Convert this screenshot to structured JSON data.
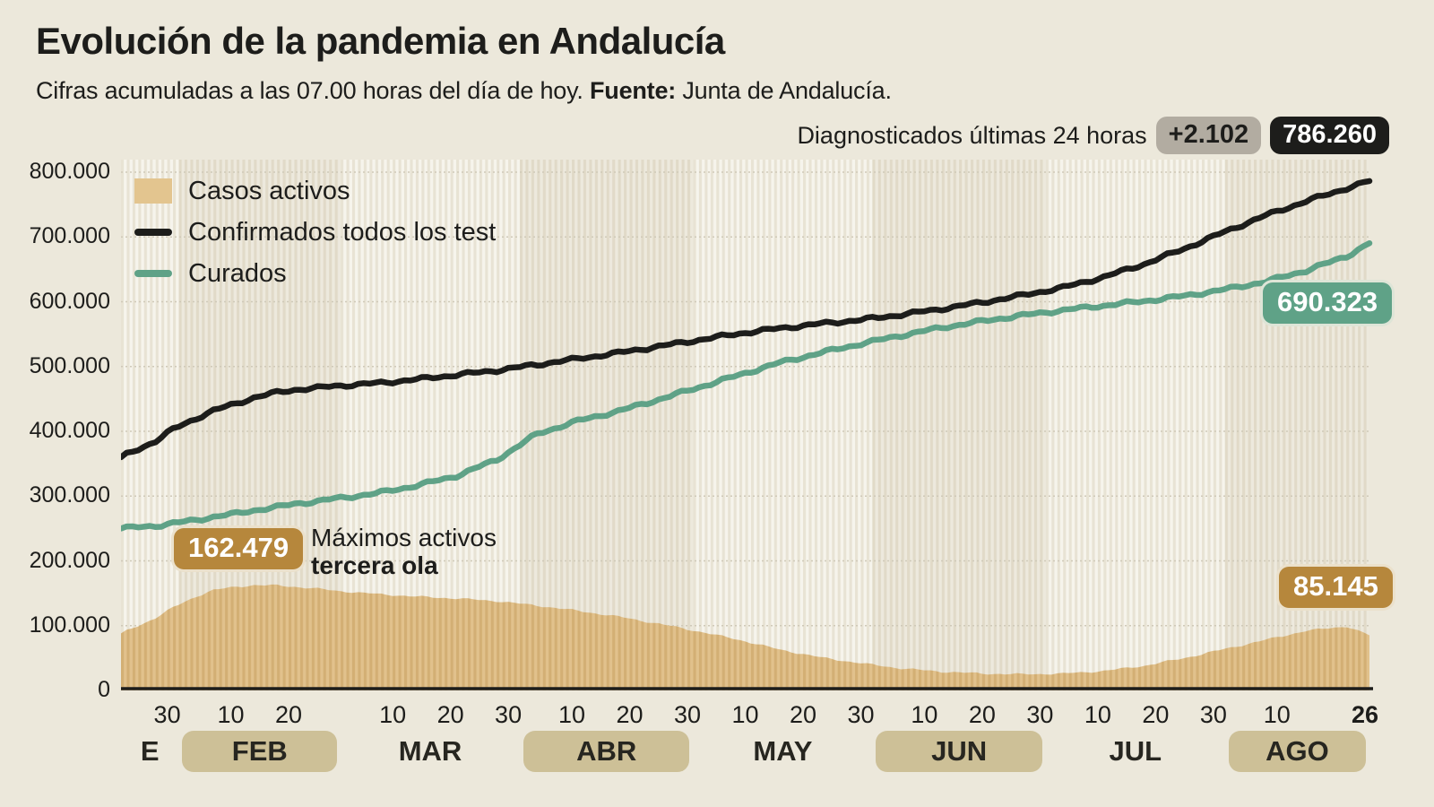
{
  "header": {
    "title": "Evolución de la pandemia en Andalucía",
    "subtitle_prefix": "Cifras acumuladas a las 07.00 horas del día de hoy. ",
    "subtitle_source_label": "Fuente:",
    "subtitle_source_rest": " Junta de Andalucía.",
    "diagnosed_label": "Diagnosticados últimas 24 horas",
    "diagnosed_delta": "+2.102",
    "diagnosed_total": "786.260"
  },
  "legend": [
    {
      "label": "Casos activos",
      "type": "area",
      "color": "#e3c58f"
    },
    {
      "label": "Confirmados todos los test",
      "type": "line",
      "color": "#1d1d1b"
    },
    {
      "label": "Curados",
      "type": "line",
      "color": "#5fa287"
    }
  ],
  "annotations": {
    "max_active_value": "162.479",
    "max_active_line1": "Máximos activos",
    "max_active_line2": "tercera ola",
    "cured_final": "690.323",
    "active_final": "85.145"
  },
  "colors": {
    "background": "#ece8db",
    "stripe_light": "#f6f4ec",
    "stripe_dark": "#e8e3d4",
    "month_tint": "rgba(181,164,125,0.13)",
    "gridline": "#cfc9b8",
    "active_area_light": "#e1c18c",
    "active_area_dark": "#d3af74",
    "confirmed_line": "#1d1d1b",
    "cured_line": "#5fa287",
    "axis_line": "#1d1d1b"
  },
  "chart_data": {
    "type": "area+line",
    "title": "Evolución de la pandemia en Andalucía",
    "y_axis": {
      "min": 0,
      "max": 800000,
      "tick_interval": 100000,
      "ticks": [
        {
          "value": 800000,
          "label": "800.000"
        },
        {
          "value": 700000,
          "label": "700.000"
        },
        {
          "value": 600000,
          "label": "600.000"
        },
        {
          "value": 500000,
          "label": "500.000"
        },
        {
          "value": 400000,
          "label": "400.000"
        },
        {
          "value": 300000,
          "label": "300.000"
        },
        {
          "value": 200000,
          "label": "200.000"
        },
        {
          "value": 100000,
          "label": "100.000"
        },
        {
          "value": 0,
          "label": "0"
        }
      ]
    },
    "x_axis": {
      "total_days": 216,
      "months": [
        {
          "label": "E",
          "badge": false,
          "start_day": 0,
          "end_day": 10
        },
        {
          "label": "FEB",
          "badge": true,
          "start_day": 10,
          "end_day": 38
        },
        {
          "label": "MAR",
          "badge": false,
          "start_day": 38,
          "end_day": 69
        },
        {
          "label": "ABR",
          "badge": true,
          "start_day": 69,
          "end_day": 99
        },
        {
          "label": "MAY",
          "badge": false,
          "start_day": 99,
          "end_day": 130
        },
        {
          "label": "JUN",
          "badge": true,
          "start_day": 130,
          "end_day": 160
        },
        {
          "label": "JUL",
          "badge": false,
          "start_day": 160,
          "end_day": 191
        },
        {
          "label": "AGO",
          "badge": true,
          "start_day": 191,
          "end_day": 216
        }
      ],
      "day_ticks": [
        {
          "label": "30",
          "day": 8
        },
        {
          "label": "10",
          "day": 19
        },
        {
          "label": "20",
          "day": 29
        },
        {
          "label": "10",
          "day": 47
        },
        {
          "label": "20",
          "day": 57
        },
        {
          "label": "30",
          "day": 67
        },
        {
          "label": "10",
          "day": 78
        },
        {
          "label": "20",
          "day": 88
        },
        {
          "label": "30",
          "day": 98
        },
        {
          "label": "10",
          "day": 108
        },
        {
          "label": "20",
          "day": 118
        },
        {
          "label": "30",
          "day": 128
        },
        {
          "label": "10",
          "day": 139
        },
        {
          "label": "20",
          "day": 149
        },
        {
          "label": "30",
          "day": 159
        },
        {
          "label": "10",
          "day": 169
        },
        {
          "label": "20",
          "day": 179
        },
        {
          "label": "30",
          "day": 189
        },
        {
          "label": "10",
          "day": 200
        },
        {
          "label": "26",
          "day": 216,
          "bold": true
        }
      ]
    },
    "series": [
      {
        "name": "Casos activos",
        "type": "area",
        "final_value": 85145,
        "max_value": 162479,
        "days": [
          0,
          6,
          9,
          13,
          16,
          20,
          23,
          27,
          30,
          34,
          37,
          44,
          51,
          58,
          65,
          72,
          79,
          86,
          93,
          100,
          107,
          114,
          121,
          128,
          135,
          142,
          149,
          156,
          163,
          170,
          177,
          184,
          191,
          198,
          205,
          212,
          216
        ],
        "values": [
          88000,
          112000,
          128000,
          145000,
          155000,
          160000,
          162479,
          162000,
          160000,
          157000,
          154000,
          149000,
          145000,
          142000,
          138000,
          131000,
          123000,
          114000,
          103000,
          91000,
          78000,
          63000,
          51000,
          42000,
          34000,
          29000,
          26000,
          25000,
          26000,
          30000,
          38000,
          50000,
          64000,
          78000,
          92000,
          99000,
          85145
        ]
      },
      {
        "name": "Confirmados todos los test",
        "type": "line",
        "final_value": 786260,
        "days": [
          0,
          6,
          9,
          13,
          16,
          20,
          23,
          27,
          30,
          34,
          37,
          44,
          51,
          58,
          65,
          72,
          79,
          86,
          93,
          100,
          107,
          114,
          121,
          128,
          135,
          142,
          149,
          156,
          163,
          170,
          177,
          184,
          191,
          198,
          205,
          212,
          216
        ],
        "values": [
          360000,
          385000,
          403000,
          420000,
          432000,
          443000,
          452000,
          460000,
          464000,
          467000,
          470000,
          474000,
          480000,
          487000,
          494000,
          503000,
          512000,
          521000,
          531000,
          541000,
          551000,
          559000,
          566000,
          572000,
          580000,
          589000,
          599000,
          610000,
          622000,
          638000,
          658000,
          682000,
          708000,
          733000,
          755000,
          775000,
          786260
        ]
      },
      {
        "name": "Curados",
        "type": "line",
        "final_value": 690323,
        "days": [
          0,
          6,
          9,
          13,
          16,
          20,
          23,
          27,
          30,
          34,
          37,
          44,
          51,
          58,
          65,
          72,
          79,
          86,
          93,
          100,
          107,
          114,
          121,
          128,
          135,
          142,
          149,
          156,
          163,
          170,
          177,
          184,
          191,
          198,
          205,
          212,
          216
        ],
        "values": [
          250000,
          254000,
          258000,
          263000,
          268000,
          273000,
          278000,
          283000,
          288000,
          292000,
          296000,
          304000,
          316000,
          331000,
          356000,
          396000,
          416000,
          431000,
          449000,
          468000,
          487000,
          506000,
          521000,
          535000,
          548000,
          560000,
          570000,
          579000,
          587000,
          594000,
          601000,
          609000,
          619000,
          631000,
          648000,
          670000,
          690323
        ]
      }
    ]
  }
}
